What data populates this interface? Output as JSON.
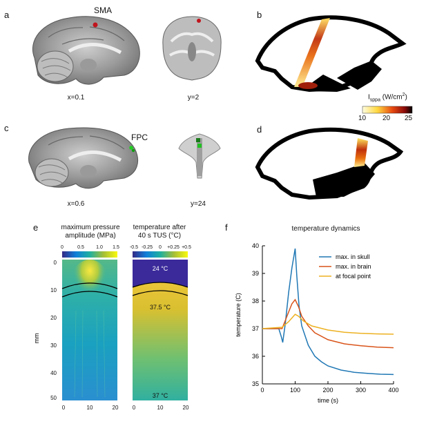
{
  "panel_a": {
    "letter": "a",
    "region": "SMA",
    "sagittal_coord": "x=0.1",
    "coronal_coord": "y=2"
  },
  "panel_b": {
    "letter": "b",
    "colorbar_label_prefix": "I",
    "colorbar_label_sub": "sppa",
    "colorbar_label_unit": " (W/cm",
    "colorbar_label_sup": "2",
    "colorbar_label_close": ")",
    "colorbar_ticks": [
      "10",
      "20",
      "25"
    ]
  },
  "panel_c": {
    "letter": "c",
    "region": "FPC",
    "sagittal_coord": "x=0.6",
    "axial_coord": "y=24"
  },
  "panel_d": {
    "letter": "d"
  },
  "panel_e": {
    "letter": "e",
    "left_title_1": "maximum pressure",
    "left_title_2": "amplitude (MPa)",
    "right_title_1": "temperature after",
    "right_title_2": "40 s TUS (°C)",
    "left_colorbar_ticks": [
      "0",
      "0.5",
      "1.0",
      "1.5"
    ],
    "right_colorbar_ticks": [
      "-0.5",
      "-0.25",
      "0",
      "+0.25",
      "+0.5"
    ],
    "y_label": "mm",
    "y_ticks": [
      "0",
      "10",
      "20",
      "30",
      "40",
      "50"
    ],
    "x_ticks": [
      "0",
      "10",
      "20"
    ],
    "temp_annotations": [
      "24 °C",
      "37.5 °C",
      "37 °C"
    ]
  },
  "panel_f": {
    "letter": "f"
  },
  "chart_data": {
    "type": "line",
    "title": "temperature dynamics",
    "xlabel": "time (s)",
    "ylabel": "temperature (C)",
    "xlim": [
      0,
      400
    ],
    "ylim": [
      35,
      40
    ],
    "x_ticks": [
      0,
      100,
      200,
      300,
      400
    ],
    "y_ticks": [
      35,
      36,
      37,
      38,
      39,
      40
    ],
    "legend_position": "top-right",
    "series": [
      {
        "name": "max. in skull",
        "color": "#1f77b4",
        "points": [
          [
            0,
            37
          ],
          [
            50,
            37
          ],
          [
            58,
            36.7
          ],
          [
            62,
            36.5
          ],
          [
            70,
            37.2
          ],
          [
            80,
            38.3
          ],
          [
            90,
            39.2
          ],
          [
            100,
            39.9
          ],
          [
            105,
            38.9
          ],
          [
            112,
            37.8
          ],
          [
            120,
            37.1
          ],
          [
            140,
            36.4
          ],
          [
            160,
            36.0
          ],
          [
            180,
            35.8
          ],
          [
            200,
            35.65
          ],
          [
            240,
            35.5
          ],
          [
            280,
            35.42
          ],
          [
            320,
            35.38
          ],
          [
            360,
            35.35
          ],
          [
            400,
            35.34
          ]
        ]
      },
      {
        "name": "max. in brain",
        "color": "#d95319",
        "points": [
          [
            0,
            37
          ],
          [
            60,
            37.0
          ],
          [
            70,
            37.3
          ],
          [
            80,
            37.6
          ],
          [
            90,
            37.9
          ],
          [
            100,
            38.05
          ],
          [
            110,
            37.8
          ],
          [
            120,
            37.45
          ],
          [
            140,
            37.1
          ],
          [
            160,
            36.85
          ],
          [
            200,
            36.6
          ],
          [
            250,
            36.45
          ],
          [
            300,
            36.38
          ],
          [
            350,
            36.33
          ],
          [
            400,
            36.31
          ]
        ]
      },
      {
        "name": "at focal point",
        "color": "#edb120",
        "points": [
          [
            0,
            37
          ],
          [
            60,
            37.05
          ],
          [
            80,
            37.25
          ],
          [
            100,
            37.52
          ],
          [
            110,
            37.45
          ],
          [
            125,
            37.28
          ],
          [
            150,
            37.1
          ],
          [
            200,
            36.95
          ],
          [
            250,
            36.87
          ],
          [
            300,
            36.83
          ],
          [
            350,
            36.81
          ],
          [
            400,
            36.8
          ]
        ]
      }
    ]
  }
}
